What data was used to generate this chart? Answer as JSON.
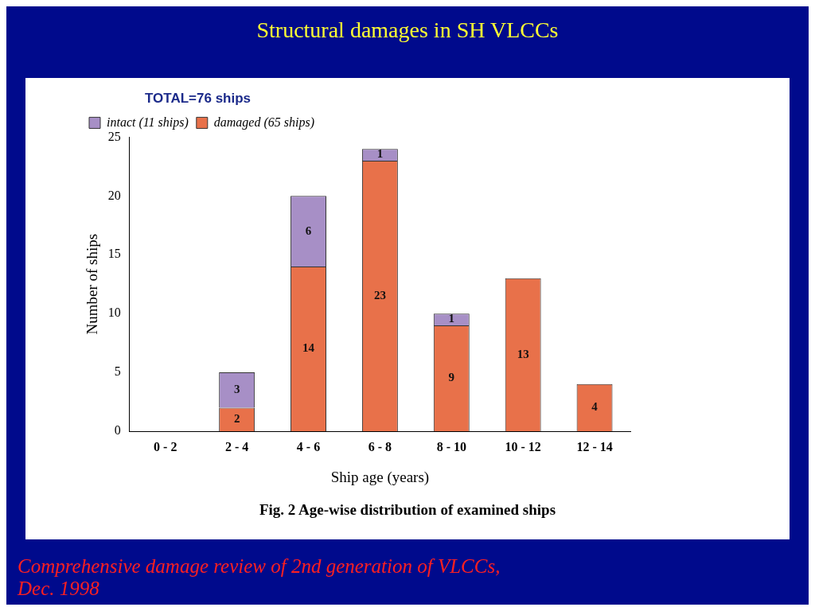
{
  "chart_data": {
    "type": "bar",
    "title": "Structural damages in SH VLCCs",
    "xlabel": "Ship age (years)",
    "ylabel": "Number of ships",
    "legend_title": "TOTAL=76 ships",
    "categories": [
      "0 - 2",
      "2 - 4",
      "4 - 6",
      "6 - 8",
      "8 - 10",
      "10 - 12",
      "12 - 14"
    ],
    "stacked": true,
    "series": [
      {
        "name": "damaged (65 ships)",
        "color": "#e8714a",
        "values": [
          null,
          2,
          14,
          23,
          9,
          13,
          4
        ],
        "value_labels": [
          null,
          "2",
          "14",
          "23",
          "9",
          "13",
          "4"
        ]
      },
      {
        "name": "intact (11 ships)",
        "color": "#a78fc6",
        "values": [
          null,
          3,
          6,
          1,
          1,
          null,
          null
        ],
        "value_labels": [
          null,
          "3",
          "6",
          "1",
          "1",
          null,
          null
        ]
      }
    ],
    "ylim": [
      0,
      25
    ],
    "yticks": [
      0,
      5,
      10,
      15,
      20,
      25
    ],
    "grid": false,
    "legend": "top left",
    "annotations": [
      "Fig. 2  Age-wise distribution of examined ships",
      "Comprehensive damage review of 2nd generation of VLCCs, Dec. 1998"
    ]
  }
}
